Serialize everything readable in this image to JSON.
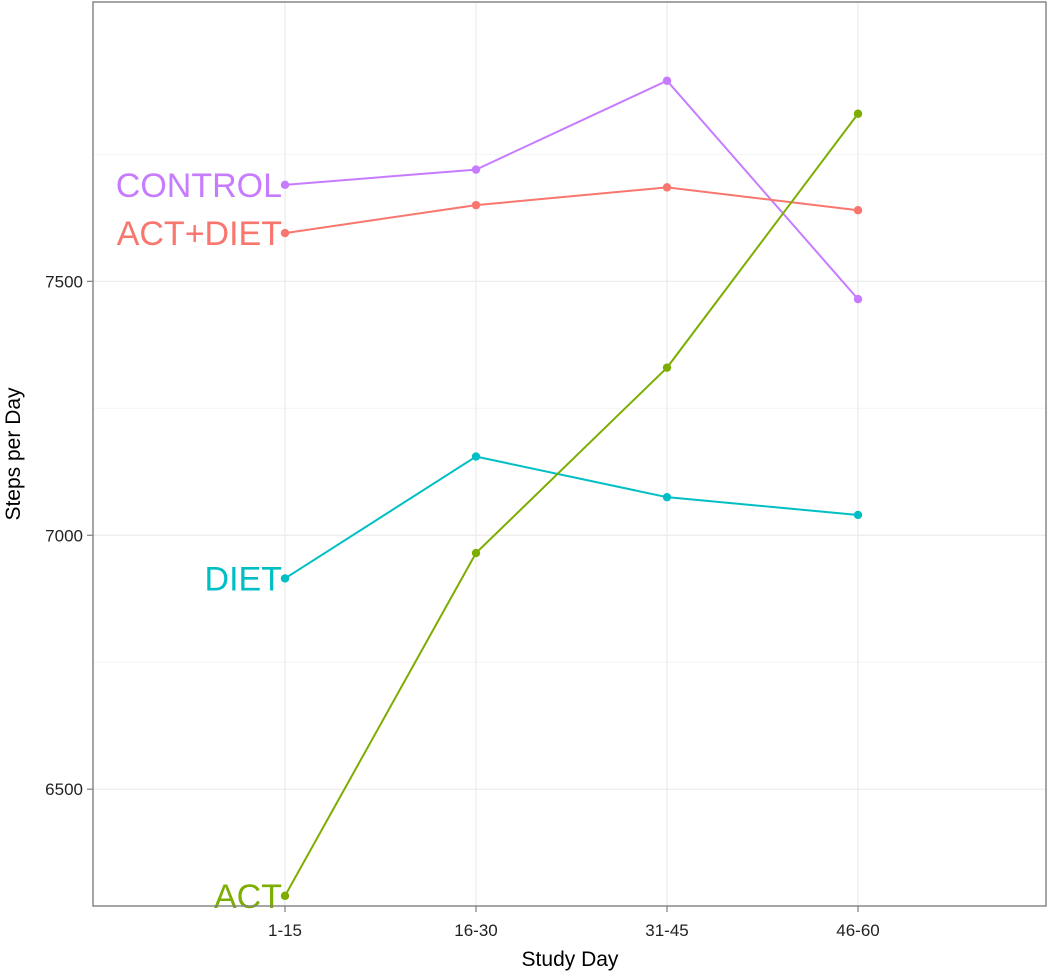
{
  "chart_data": {
    "type": "line",
    "title": "",
    "xlabel": "Study Day",
    "ylabel": "Steps per Day",
    "categories": [
      "1-15",
      "16-30",
      "31-45",
      "46-60"
    ],
    "y_ticks": [
      "6500",
      "7000",
      "7500"
    ],
    "ylim": [
      6270,
      8050
    ],
    "grid": true,
    "legend": "direct labels at left end of each line",
    "series": [
      {
        "name": "CONTROL",
        "color": "#c77cff",
        "values": [
          7690,
          7720,
          7895,
          7465
        ]
      },
      {
        "name": "ACT+DIET",
        "color": "#f8766d",
        "values": [
          7595,
          7650,
          7685,
          7640
        ]
      },
      {
        "name": "DIET",
        "color": "#00bfc4",
        "values": [
          6915,
          7155,
          7075,
          7040
        ]
      },
      {
        "name": "ACT",
        "color": "#7cae00",
        "values": [
          6290,
          6965,
          7330,
          7830
        ]
      }
    ]
  }
}
